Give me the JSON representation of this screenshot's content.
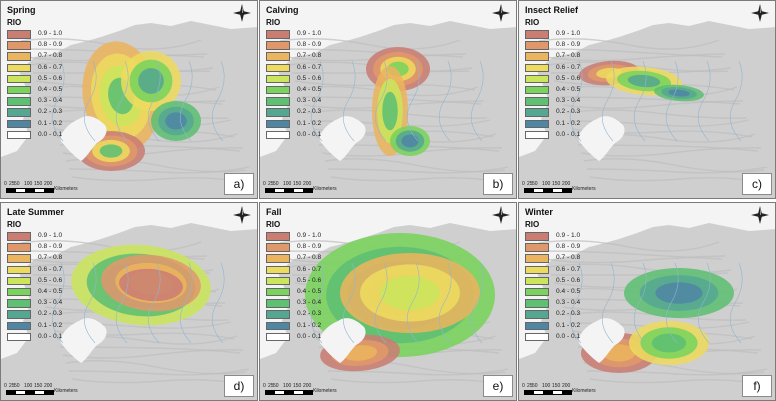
{
  "legend_title": "RIO",
  "legend": [
    {
      "label": "0.9 - 1.0",
      "color": "#c97d73"
    },
    {
      "label": "0.8 - 0.9",
      "color": "#e0986a"
    },
    {
      "label": "0.7 - 0.8",
      "color": "#ebb45e"
    },
    {
      "label": "0.6 - 0.7",
      "color": "#eddb5f"
    },
    {
      "label": "0.5 - 0.6",
      "color": "#cbe55c"
    },
    {
      "label": "0.4 - 0.5",
      "color": "#79d35c"
    },
    {
      "label": "0.3 - 0.4",
      "color": "#5fbf73"
    },
    {
      "label": "0.2 - 0.3",
      "color": "#55a791"
    },
    {
      "label": "0.1 - 0.2",
      "color": "#4f86a4"
    },
    {
      "label": "0.0 - 0.1",
      "color": "#ffffff"
    }
  ],
  "scale": {
    "ticks": [
      "0",
      "25",
      "50",
      "100",
      "150",
      "200"
    ],
    "units": "Kilometers"
  },
  "panels": [
    {
      "title": "Spring",
      "label": "a)",
      "season": "spring"
    },
    {
      "title": "Calving",
      "label": "b)",
      "season": "calving"
    },
    {
      "title": "Insect Relief",
      "label": "c)",
      "season": "insect"
    },
    {
      "title": "Late Summer",
      "label": "d)",
      "season": "latesummer"
    },
    {
      "title": "Fall",
      "label": "e)",
      "season": "fall"
    },
    {
      "title": "Winter",
      "label": "f)",
      "season": "winter"
    }
  ],
  "colors": {
    "land": "#cfcfcf",
    "sea": "#f4f4f4",
    "terrain": "#bdbdbd",
    "water_lines": "#8fb7cf"
  }
}
